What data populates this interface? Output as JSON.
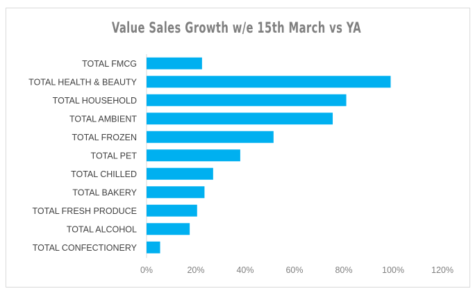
{
  "chart_data": {
    "type": "bar",
    "orientation": "horizontal",
    "title": "Value Sales Growth w/e 15th March vs YA",
    "categories": [
      "TOTAL FMCG",
      "TOTAL HEALTH & BEAUTY",
      "TOTAL HOUSEHOLD",
      "TOTAL AMBIENT",
      "TOTAL FROZEN",
      "TOTAL PET",
      "TOTAL CHILLED",
      "TOTAL BAKERY",
      "TOTAL FRESH PRODUCE",
      "TOTAL ALCOHOL",
      "TOTAL CONFECTIONERY"
    ],
    "values": [
      22.5,
      99,
      81,
      75.5,
      51.5,
      38,
      27,
      23.5,
      20.5,
      17.5,
      5.5
    ],
    "xlabel": "",
    "ylabel": "",
    "xlim": [
      0,
      120
    ],
    "xticks": [
      "0%",
      "20%",
      "40%",
      "60%",
      "80%",
      "100%",
      "120%"
    ],
    "grid": false,
    "bar_color": "#00b0f0"
  }
}
